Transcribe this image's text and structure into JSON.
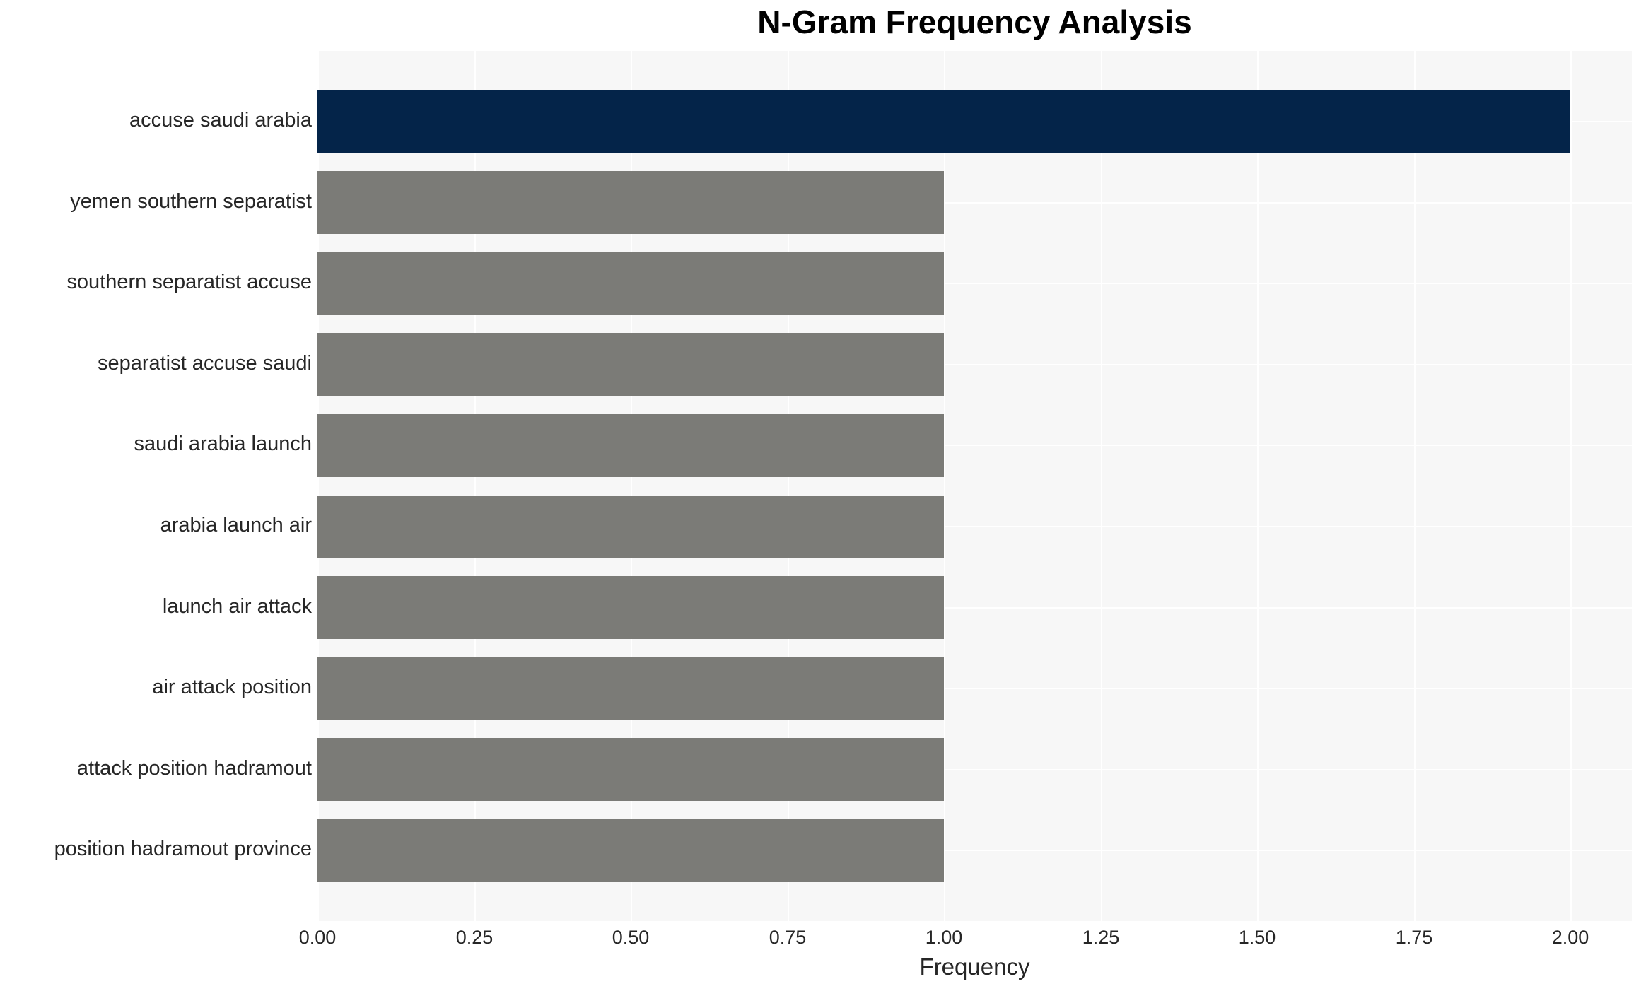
{
  "chart_data": {
    "type": "bar",
    "orientation": "horizontal",
    "title": "N-Gram Frequency Analysis",
    "xlabel": "Frequency",
    "ylabel": "",
    "categories": [
      "accuse saudi arabia",
      "yemen southern separatist",
      "southern separatist accuse",
      "separatist accuse saudi",
      "saudi arabia launch",
      "arabia launch air",
      "launch air attack",
      "air attack position",
      "attack position hadramout",
      "position hadramout province"
    ],
    "values": [
      2,
      1,
      1,
      1,
      1,
      1,
      1,
      1,
      1,
      1
    ],
    "highlight_index": 0,
    "xlim": [
      0,
      2.1
    ],
    "xticks": [
      0,
      0.25,
      0.5,
      0.75,
      1.0,
      1.25,
      1.5,
      1.75,
      2.0
    ],
    "xtick_labels": [
      "0.00",
      "0.25",
      "0.50",
      "0.75",
      "1.00",
      "1.25",
      "1.50",
      "1.75",
      "2.00"
    ],
    "grid": true,
    "legend": false,
    "colors": {
      "highlight_bar": "#042449",
      "default_bar": "#7b7b77",
      "plot_background": "#f7f7f7",
      "grid_line": "#ffffff",
      "figure_background": "#ffffff",
      "tick_text": "#262626",
      "title_text": "#000000"
    }
  }
}
